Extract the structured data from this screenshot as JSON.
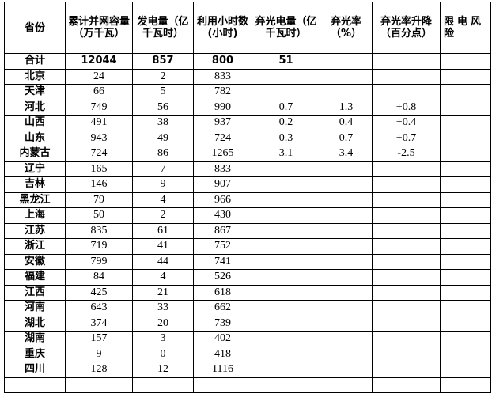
{
  "headers": [
    "省份",
    "累计并网容量（万千瓦）",
    "发电量（亿千瓦时）",
    "利用小时数(小时)",
    "弃光电量（亿千瓦时）",
    "弃光率（%）",
    "弃光率升降（百分点）",
    "限电风险"
  ],
  "rows": [
    [
      "合计",
      "12044",
      "857",
      "800",
      "51",
      "",
      "",
      ""
    ],
    [
      "北京",
      "24",
      "2",
      "833",
      "",
      "",
      "",
      ""
    ],
    [
      "天津",
      "66",
      "5",
      "782",
      "",
      "",
      "",
      ""
    ],
    [
      "河北",
      "749",
      "56",
      "990",
      "0.7",
      "1.3",
      "+0.8",
      ""
    ],
    [
      "山西",
      "491",
      "38",
      "937",
      "0.2",
      "0.4",
      "+0.4",
      ""
    ],
    [
      "山东",
      "943",
      "49",
      "724",
      "0.3",
      "0.7",
      "+0.7",
      ""
    ],
    [
      "内蒙古",
      "724",
      "86",
      "1265",
      "3.1",
      "3.4",
      "-2.5",
      ""
    ],
    [
      "辽宁",
      "165",
      "7",
      "833",
      "",
      "",
      "",
      ""
    ],
    [
      "吉林",
      "146",
      "9",
      "907",
      "",
      "",
      "",
      ""
    ],
    [
      "黑龙江",
      "79",
      "4",
      "966",
      "",
      "",
      "",
      ""
    ],
    [
      "上海",
      "50",
      "2",
      "430",
      "",
      "",
      "",
      ""
    ],
    [
      "江苏",
      "835",
      "61",
      "867",
      "",
      "",
      "",
      ""
    ],
    [
      "浙江",
      "719",
      "41",
      "752",
      "",
      "",
      "",
      ""
    ],
    [
      "安徽",
      "799",
      "44",
      "741",
      "",
      "",
      "",
      ""
    ],
    [
      "福建",
      "84",
      "4",
      "526",
      "",
      "",
      "",
      ""
    ],
    [
      "江西",
      "425",
      "21",
      "618",
      "",
      "",
      "",
      ""
    ],
    [
      "河南",
      "643",
      "33",
      "662",
      "",
      "",
      "",
      ""
    ],
    [
      "湖北",
      "374",
      "20",
      "739",
      "",
      "",
      "",
      ""
    ],
    [
      "湖南",
      "157",
      "3",
      "402",
      "",
      "",
      "",
      ""
    ],
    [
      "重庆",
      "9",
      "0",
      "418",
      "",
      "",
      "",
      ""
    ],
    [
      "四川",
      "128",
      "12",
      "1116",
      "",
      "",
      "",
      ""
    ]
  ]
}
